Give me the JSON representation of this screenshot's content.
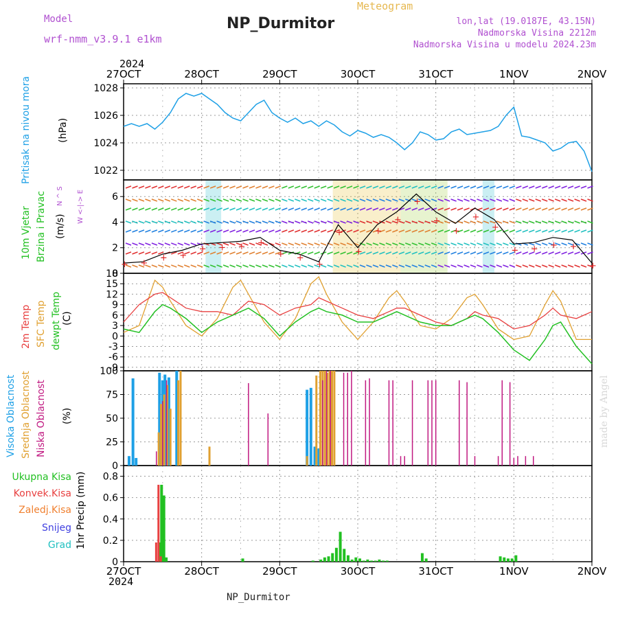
{
  "header": {
    "model_label": "Model",
    "model_name": "wrf-nmm_v3.9.1 e1km",
    "title": "NP_Durmitor",
    "meteogram": "Meteogram",
    "lonlat": "lon,lat (19.0187E, 43.15N)",
    "elevation": "Nadmorska Visina 2212m",
    "model_elevation": "Nadmorska Visina u modelu 2024.23m"
  },
  "footer": {
    "station": "NP_Durmitor",
    "credit": "made by Angel"
  },
  "x_axis": {
    "year": "2024",
    "ticks": [
      "27OCT",
      "28OCT",
      "29OCT",
      "30OCT",
      "31OCT",
      "1NOV",
      "2NOV"
    ]
  },
  "colors": {
    "pressure": "#1ea0e6",
    "temp2m": "#e84040",
    "sfc": "#e0a030",
    "dewpt": "#22c022",
    "high_cloud": "#1ea0e6",
    "mid_cloud": "#e0a030",
    "low_cloud": "#c01880",
    "total_rain": "#22c022",
    "conv_rain": "#e84040",
    "frz_rain": "#f08030",
    "snow": "#4040e0",
    "graupel": "#20c0c0",
    "model_text": "#b050d0"
  },
  "panels": {
    "pressure": {
      "label": "Pritisak na nivou mora",
      "unit": "(hPa)"
    },
    "wind": {
      "label1": "10m Vjetar",
      "label2": "Brzina i Pravac",
      "unit": "(m/s)",
      "compass": "W <-|-> E",
      "compass_ns": "N ^ S"
    },
    "temp": {
      "label1": "2m Temp",
      "label2": "SFC Temp",
      "label3": "dewpt Temp",
      "unit": "(C)"
    },
    "cloud": {
      "label1": "Visoka Oblacnost",
      "label2": "Srednja Oblacnost",
      "label3": "Niska Oblacnost",
      "unit": "(%)"
    },
    "precip": {
      "unit": "1hr Precip (mm)",
      "legend": [
        "Ukupna Kisa",
        "Konvek.Kisa",
        "Zaledj.Kisa",
        "Snijeg",
        "Grad"
      ]
    }
  },
  "chart_data": [
    {
      "type": "line",
      "panel": "pressure",
      "ylabel": "(hPa)",
      "ylim": [
        1021.3,
        1028.3
      ],
      "yticks": [
        1022,
        1024,
        1026,
        1028
      ],
      "grid": true,
      "x_days": [
        0,
        0.1,
        0.2,
        0.3,
        0.4,
        0.5,
        0.6,
        0.7,
        0.8,
        0.9,
        1.0,
        1.1,
        1.2,
        1.3,
        1.4,
        1.5,
        1.6,
        1.7,
        1.8,
        1.9,
        2.0,
        2.1,
        2.2,
        2.3,
        2.4,
        2.5,
        2.6,
        2.7,
        2.8,
        2.9,
        3.0,
        3.1,
        3.2,
        3.3,
        3.4,
        3.5,
        3.6,
        3.7,
        3.8,
        3.9,
        4.0,
        4.1,
        4.2,
        4.3,
        4.4,
        4.5,
        4.6,
        4.7,
        4.8,
        4.9,
        5.0,
        5.1,
        5.2,
        5.3,
        5.4,
        5.5,
        5.6,
        5.7,
        5.8,
        5.9,
        6.0
      ],
      "series": [
        {
          "values": [
            1025.2,
            1025.4,
            1025.2,
            1025.4,
            1025.0,
            1025.5,
            1026.2,
            1027.2,
            1027.6,
            1027.4,
            1027.6,
            1027.2,
            1026.8,
            1026.2,
            1025.8,
            1025.6,
            1026.2,
            1026.8,
            1027.1,
            1026.2,
            1025.8,
            1025.5,
            1025.8,
            1025.4,
            1025.6,
            1025.2,
            1025.6,
            1025.3,
            1024.8,
            1024.5,
            1024.9,
            1024.7,
            1024.4,
            1024.6,
            1024.4,
            1024.0,
            1023.5,
            1024.0,
            1024.8,
            1024.6,
            1024.2,
            1024.3,
            1024.8,
            1025.0,
            1024.6,
            1024.7,
            1024.8,
            1024.9,
            1025.2,
            1026.0,
            1026.6,
            1024.5,
            1024.4,
            1024.2,
            1024.0,
            1023.4,
            1023.6,
            1024.0,
            1024.1,
            1023.4,
            1021.9
          ]
        }
      ]
    },
    {
      "type": "line",
      "panel": "wind",
      "ylabel": "(m/s)",
      "ylim": [
        0,
        7.3
      ],
      "yticks": [
        0,
        2,
        4,
        6
      ],
      "grid": true,
      "x_days": [
        0,
        0.25,
        0.5,
        0.75,
        1.0,
        1.25,
        1.5,
        1.75,
        2.0,
        2.25,
        2.5,
        2.75,
        3.0,
        3.25,
        3.5,
        3.75,
        4.0,
        4.25,
        4.5,
        4.75,
        5.0,
        5.25,
        5.5,
        5.75,
        6.0
      ],
      "series": [
        {
          "values": [
            0.8,
            0.9,
            1.5,
            1.8,
            2.3,
            2.4,
            2.5,
            2.8,
            1.8,
            1.5,
            0.9,
            3.8,
            2.0,
            3.8,
            4.8,
            6.2,
            4.8,
            3.9,
            5.1,
            4.2,
            2.3,
            2.4,
            2.8,
            2.6,
            0.8
          ]
        },
        {
          "values": [
            0.7,
            0.8,
            1.2,
            1.4,
            1.9,
            2.0,
            2.1,
            2.4,
            1.5,
            1.2,
            0.7,
            3.2,
            1.7,
            3.3,
            4.2,
            5.6,
            4.1,
            3.3,
            4.4,
            3.6,
            1.8,
            1.9,
            2.2,
            2.1,
            0.6
          ]
        }
      ]
    },
    {
      "type": "line",
      "panel": "temperature",
      "ylabel": "(C)",
      "ylim": [
        -10,
        18
      ],
      "yticks": [
        -9,
        -6,
        -3,
        0,
        3,
        6,
        9,
        12,
        15,
        18
      ],
      "grid": true,
      "x_days": [
        0,
        0.2,
        0.4,
        0.5,
        0.6,
        0.8,
        1.0,
        1.2,
        1.4,
        1.5,
        1.6,
        1.8,
        2.0,
        2.2,
        2.4,
        2.5,
        2.6,
        2.8,
        3.0,
        3.2,
        3.4,
        3.5,
        3.6,
        3.8,
        4.0,
        4.2,
        4.4,
        4.5,
        4.6,
        4.8,
        5.0,
        5.2,
        5.4,
        5.5,
        5.6,
        5.8,
        6.0
      ],
      "series": [
        {
          "values": [
            4,
            9,
            12,
            12.5,
            11,
            8,
            7,
            7,
            6,
            8,
            10,
            9,
            6,
            8,
            9,
            11,
            10,
            8,
            6,
            5,
            7,
            8,
            8,
            6,
            4,
            3,
            5,
            7,
            6,
            5,
            2,
            3,
            6,
            8,
            6,
            5,
            7
          ]
        },
        {
          "values": [
            1,
            3,
            16,
            14,
            10,
            3,
            0,
            5,
            14,
            16,
            12,
            4,
            -1,
            5,
            15,
            17,
            12,
            4,
            -1,
            4,
            11,
            13,
            10,
            3,
            2,
            5,
            11,
            12,
            9,
            2,
            -1,
            0,
            9,
            13,
            10,
            -1,
            -1
          ]
        },
        {
          "values": [
            2,
            1,
            7,
            9,
            8,
            5,
            1,
            4,
            6,
            7,
            8,
            5,
            0,
            4,
            7,
            8,
            7,
            6,
            4,
            4,
            6,
            7,
            6,
            4,
            3,
            3,
            5,
            6,
            5,
            1,
            -4,
            -7,
            -1,
            3,
            4,
            -3,
            -8
          ]
        }
      ]
    },
    {
      "type": "bar",
      "panel": "cloud",
      "ylabel": "(%)",
      "ylim": [
        0,
        100
      ],
      "yticks": [
        0,
        25,
        50,
        75,
        100
      ],
      "grid": true,
      "series": [
        {
          "name": "Visoka Oblacnost",
          "x_days": [
            0.07,
            0.12,
            0.16,
            0.46,
            0.5,
            0.53,
            0.58,
            0.68,
            2.35,
            2.4,
            2.45,
            2.5
          ],
          "values": [
            10,
            92,
            8,
            98,
            90,
            96,
            93,
            100,
            80,
            82,
            20,
            18
          ]
        },
        {
          "name": "Srednja Oblacnost",
          "x_days": [
            0.45,
            0.48,
            0.52,
            0.56,
            0.6,
            0.7,
            0.73,
            1.1,
            2.35,
            2.47,
            2.52,
            2.55,
            2.58,
            2.61,
            2.64,
            2.67,
            2.7
          ],
          "values": [
            35,
            65,
            75,
            85,
            60,
            90,
            100,
            20,
            10,
            95,
            100,
            100,
            100,
            98,
            100,
            100,
            100
          ]
        },
        {
          "name": "Niska Oblacnost",
          "x_days": [
            0.42,
            0.5,
            0.55,
            1.6,
            1.85,
            2.55,
            2.6,
            2.65,
            2.82,
            2.87,
            2.92,
            3.1,
            3.15,
            3.4,
            3.45,
            3.55,
            3.6,
            3.7,
            3.9,
            3.95,
            4.0,
            4.3,
            4.4,
            4.5,
            4.8,
            4.85,
            4.95,
            5.0,
            5.05,
            5.15,
            5.25
          ],
          "values": [
            15,
            68,
            90,
            87,
            55,
            90,
            100,
            100,
            98,
            98,
            100,
            90,
            92,
            90,
            90,
            10,
            10,
            90,
            90,
            90,
            90,
            90,
            88,
            10,
            10,
            90,
            88,
            8,
            10,
            10,
            10
          ]
        }
      ]
    },
    {
      "type": "bar",
      "panel": "precipitation",
      "ylabel": "1hr Precip (mm)",
      "ylim": [
        0,
        0.9
      ],
      "yticks": [
        0,
        0.2,
        0.4,
        0.6,
        0.8
      ],
      "grid": true,
      "series": [
        {
          "name": "Ukupna Kisa",
          "x_days": [
            0.43,
            0.46,
            0.49,
            0.52,
            1.5,
            2.4,
            2.5,
            2.55,
            2.6,
            2.65,
            2.7,
            2.75,
            2.8,
            2.85,
            2.9,
            2.95,
            3.0,
            3.05,
            3.1,
            3.15,
            3.2,
            3.25,
            3.3,
            3.35,
            3.8,
            3.85,
            4.8,
            4.85,
            4.9,
            4.95,
            5.0
          ],
          "values": [
            0.18,
            0.72,
            0.62,
            0.04,
            0.03,
            0.01,
            0.02,
            0.04,
            0.05,
            0.08,
            0.13,
            0.28,
            0.12,
            0.06,
            0.02,
            0.04,
            0.03,
            0.01,
            0.02,
            0.01,
            0.01,
            0.02,
            0.01,
            0.01,
            0.08,
            0.03,
            0.05,
            0.04,
            0.03,
            0.03,
            0.06
          ]
        },
        {
          "name": "Konvek.Kisa",
          "x_days": [
            0.43,
            0.46,
            0.49
          ],
          "values": [
            0.18,
            0.72,
            0.05
          ]
        },
        {
          "name": "Zaledj.Kisa",
          "x_days": [],
          "values": []
        },
        {
          "name": "Snijeg",
          "x_days": [],
          "values": []
        },
        {
          "name": "Grad",
          "x_days": [],
          "values": []
        }
      ]
    }
  ]
}
